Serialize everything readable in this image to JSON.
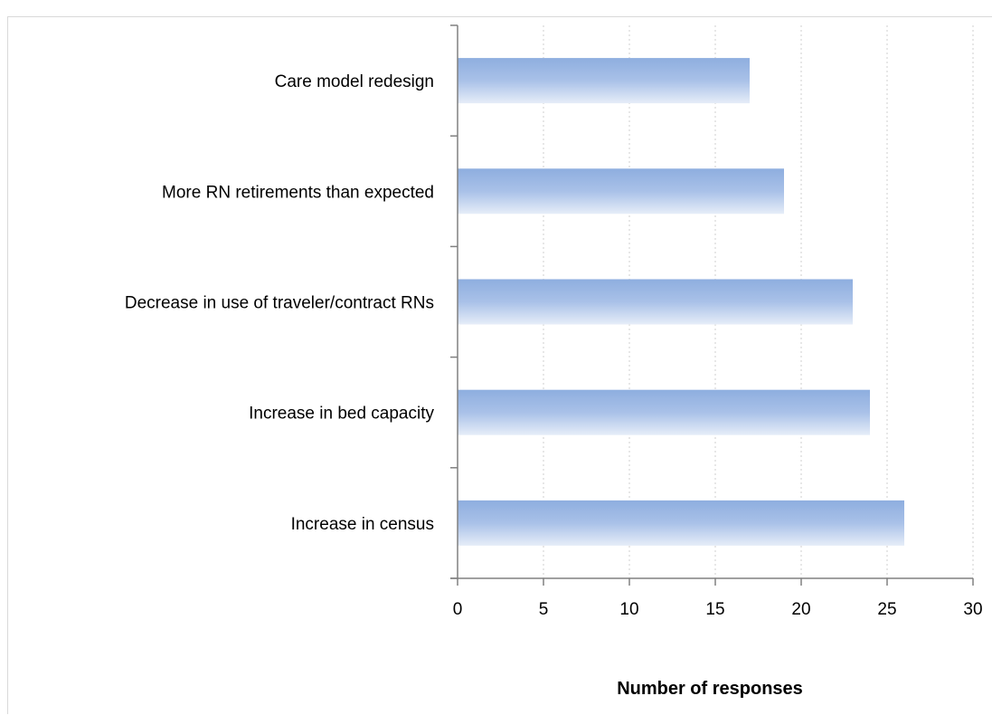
{
  "chart_data": {
    "type": "bar",
    "orientation": "horizontal",
    "title": "",
    "xlabel": "Number of responses",
    "ylabel": "",
    "categories": [
      "Care model redesign",
      "More RN retirements than expected",
      "Decrease in use of traveler/contract RNs",
      "Increase in bed capacity",
      "Increase in census"
    ],
    "values": [
      17,
      19,
      23,
      24,
      26
    ],
    "xlim": [
      0,
      30
    ],
    "xticks": [
      0,
      5,
      10,
      15,
      20,
      25,
      30
    ],
    "grid": "vertical-dotted",
    "bar_color": "#95b3e0"
  }
}
